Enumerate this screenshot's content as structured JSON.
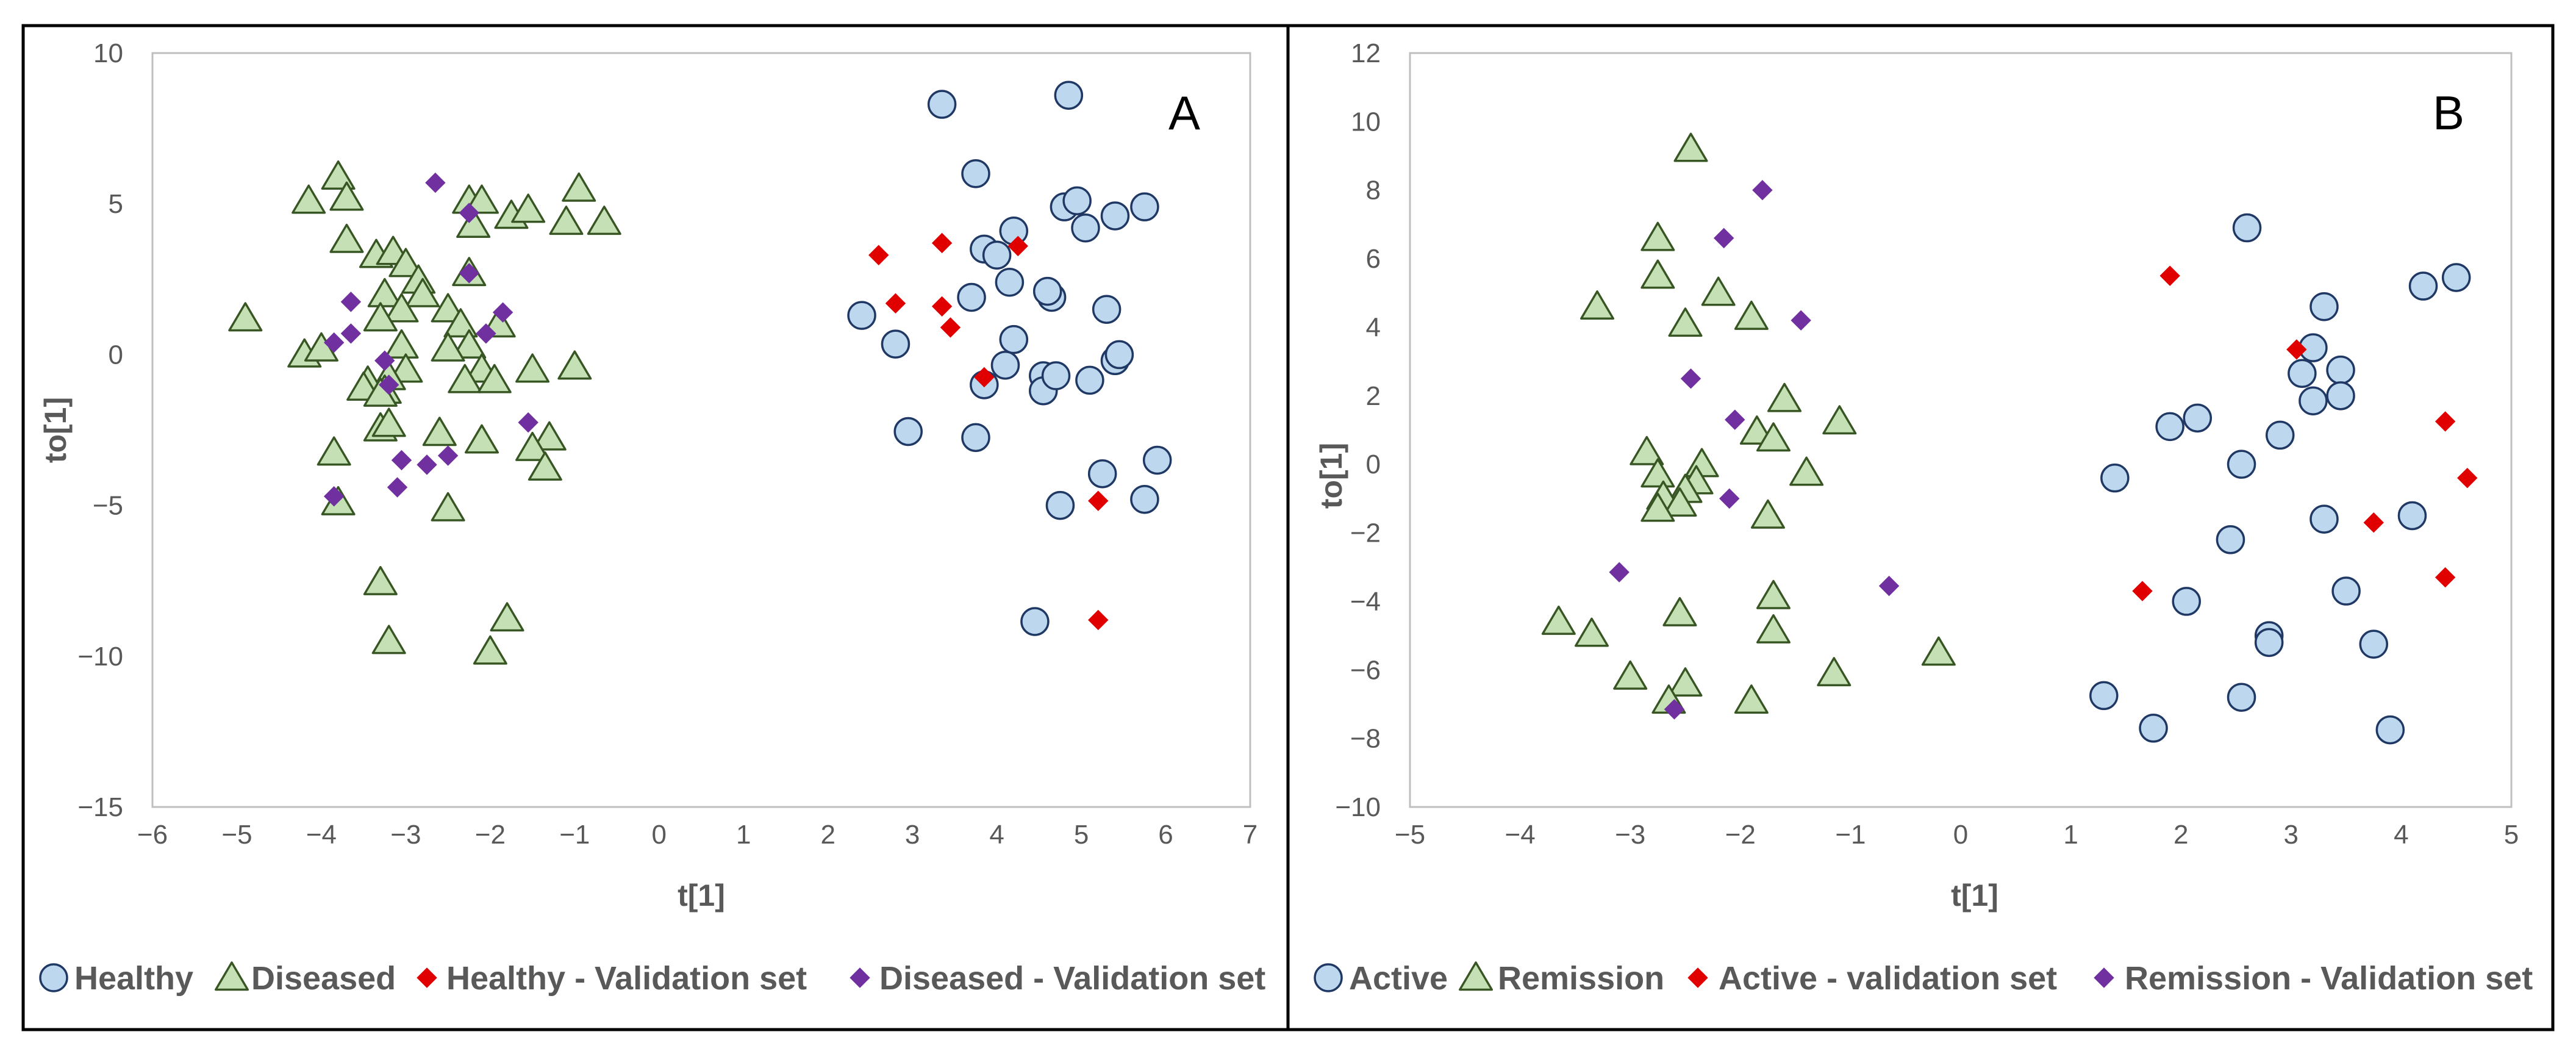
{
  "chart_data": [
    {
      "type": "scatter",
      "panel_label": "A",
      "xlabel": "t[1]",
      "ylabel": "to[1]",
      "xlim": [
        -6,
        7
      ],
      "ylim": [
        -15,
        10
      ],
      "xticks": [
        -6,
        -5,
        -4,
        -3,
        -2,
        -1,
        0,
        1,
        2,
        3,
        4,
        5,
        6,
        7
      ],
      "yticks": [
        -15,
        -10,
        -5,
        0,
        5,
        10
      ],
      "tick_labels_x": [
        "−6",
        "−5",
        "−4",
        "−3",
        "−2",
        "−1",
        "0",
        "1",
        "2",
        "3",
        "4",
        "5",
        "6",
        "7"
      ],
      "tick_labels_y": [
        "−15",
        "−10",
        "−5",
        "0",
        "5",
        "10"
      ],
      "grid": false,
      "legend_position": "bottom",
      "series": [
        {
          "name": "Healthy",
          "marker": "circle",
          "fill": "#BDD7EE",
          "stroke": "#1F3864",
          "points": [
            [
              3.35,
              8.3
            ],
            [
              4.85,
              8.6
            ],
            [
              3.75,
              6.0
            ],
            [
              4.8,
              4.9
            ],
            [
              4.95,
              5.1
            ],
            [
              5.05,
              4.2
            ],
            [
              5.4,
              4.6
            ],
            [
              5.75,
              4.9
            ],
            [
              4.2,
              4.1
            ],
            [
              3.85,
              3.5
            ],
            [
              4.0,
              3.3
            ],
            [
              4.15,
              2.4
            ],
            [
              3.7,
              1.9
            ],
            [
              4.65,
              1.9
            ],
            [
              4.6,
              2.1
            ],
            [
              5.3,
              1.5
            ],
            [
              2.4,
              1.3
            ],
            [
              2.8,
              0.35
            ],
            [
              4.2,
              0.5
            ],
            [
              4.1,
              -0.35
            ],
            [
              3.85,
              -1.0
            ],
            [
              4.55,
              -0.7
            ],
            [
              4.55,
              -1.2
            ],
            [
              4.7,
              -0.7
            ],
            [
              5.1,
              -0.85
            ],
            [
              5.4,
              -0.2
            ],
            [
              5.45,
              0.0
            ],
            [
              2.95,
              -2.55
            ],
            [
              3.75,
              -2.75
            ],
            [
              5.25,
              -3.95
            ],
            [
              5.9,
              -3.5
            ],
            [
              4.75,
              -5.0
            ],
            [
              5.75,
              -4.8
            ],
            [
              4.45,
              -8.85
            ]
          ]
        },
        {
          "name": "Diseased",
          "marker": "triangle",
          "fill": "#C5E0B4",
          "stroke": "#375623",
          "points": [
            [
              -3.8,
              5.9
            ],
            [
              -3.7,
              5.2
            ],
            [
              -4.15,
              5.1
            ],
            [
              -0.95,
              5.5
            ],
            [
              -2.25,
              5.1
            ],
            [
              -2.1,
              5.1
            ],
            [
              -1.75,
              4.6
            ],
            [
              -1.55,
              4.8
            ],
            [
              -1.1,
              4.4
            ],
            [
              -0.65,
              4.4
            ],
            [
              -2.2,
              4.3
            ],
            [
              -3.7,
              3.8
            ],
            [
              -3.35,
              3.3
            ],
            [
              -3.15,
              3.4
            ],
            [
              -3.0,
              3.0
            ],
            [
              -2.85,
              2.45
            ],
            [
              -2.8,
              2.0
            ],
            [
              -2.25,
              2.7
            ],
            [
              -3.25,
              2.0
            ],
            [
              -3.05,
              1.5
            ],
            [
              -3.3,
              1.2
            ],
            [
              -4.9,
              1.2
            ],
            [
              -2.5,
              1.5
            ],
            [
              -1.9,
              1.0
            ],
            [
              -2.35,
              1.0
            ],
            [
              -3.05,
              0.3
            ],
            [
              -2.25,
              0.3
            ],
            [
              -2.5,
              0.2
            ],
            [
              -4.2,
              0.0
            ],
            [
              -4.0,
              0.2
            ],
            [
              -2.1,
              -0.5
            ],
            [
              -1.5,
              -0.5
            ],
            [
              -1.0,
              -0.4
            ],
            [
              -3.0,
              -0.5
            ],
            [
              -3.2,
              -0.75
            ],
            [
              -3.45,
              -0.9
            ],
            [
              -3.5,
              -1.1
            ],
            [
              -3.25,
              -1.2
            ],
            [
              -2.3,
              -0.85
            ],
            [
              -1.95,
              -0.85
            ],
            [
              -3.3,
              -1.3
            ],
            [
              -3.3,
              -2.45
            ],
            [
              -3.2,
              -2.3
            ],
            [
              -2.6,
              -2.6
            ],
            [
              -2.1,
              -2.85
            ],
            [
              -1.3,
              -2.75
            ],
            [
              -1.5,
              -3.1
            ],
            [
              -3.85,
              -3.25
            ],
            [
              -1.35,
              -3.75
            ],
            [
              -3.8,
              -4.9
            ],
            [
              -2.5,
              -5.1
            ],
            [
              -3.3,
              -7.55
            ],
            [
              -3.2,
              -9.5
            ],
            [
              -1.8,
              -8.75
            ],
            [
              -2.0,
              -9.85
            ]
          ]
        },
        {
          "name": "Healthy - Validation set",
          "marker": "diamond",
          "fill": "#E00000",
          "stroke": "#E00000",
          "points": [
            [
              2.6,
              3.3
            ],
            [
              3.35,
              3.7
            ],
            [
              4.25,
              3.6
            ],
            [
              2.8,
              1.7
            ],
            [
              3.35,
              1.6
            ],
            [
              3.45,
              0.9
            ],
            [
              3.85,
              -0.75
            ],
            [
              5.2,
              -4.85
            ],
            [
              5.2,
              -8.8
            ]
          ]
        },
        {
          "name": "Diseased - Validation set",
          "marker": "diamond",
          "fill": "#7030A0",
          "stroke": "#7030A0",
          "points": [
            [
              -2.65,
              5.7
            ],
            [
              -2.25,
              4.7
            ],
            [
              -2.25,
              2.7
            ],
            [
              -3.65,
              1.75
            ],
            [
              -1.85,
              1.4
            ],
            [
              -3.65,
              0.7
            ],
            [
              -3.85,
              0.4
            ],
            [
              -2.05,
              0.7
            ],
            [
              -3.25,
              -0.2
            ],
            [
              -3.2,
              -1.0
            ],
            [
              -1.55,
              -2.25
            ],
            [
              -3.05,
              -3.5
            ],
            [
              -2.75,
              -3.65
            ],
            [
              -2.5,
              -3.35
            ],
            [
              -3.1,
              -4.4
            ],
            [
              -3.85,
              -4.7
            ]
          ]
        }
      ]
    },
    {
      "type": "scatter",
      "panel_label": "B",
      "xlabel": "t[1]",
      "ylabel": "to[1]",
      "xlim": [
        -5,
        5
      ],
      "ylim": [
        -10,
        12
      ],
      "xticks": [
        -5,
        -4,
        -3,
        -2,
        -1,
        0,
        1,
        2,
        3,
        4,
        5
      ],
      "yticks": [
        -10,
        -8,
        -6,
        -4,
        -2,
        0,
        2,
        4,
        6,
        8,
        10,
        12
      ],
      "tick_labels_x": [
        "−5",
        "−4",
        "−3",
        "−2",
        "−1",
        "0",
        "1",
        "2",
        "3",
        "4",
        "5"
      ],
      "tick_labels_y": [
        "−10",
        "−8",
        "−6",
        "−4",
        "−2",
        "0",
        "2",
        "4",
        "6",
        "8",
        "10",
        "12"
      ],
      "grid": false,
      "legend_position": "bottom",
      "series": [
        {
          "name": "Active",
          "marker": "circle",
          "fill": "#BDD7EE",
          "stroke": "#1F3864",
          "points": [
            [
              2.6,
              6.9
            ],
            [
              4.2,
              5.2
            ],
            [
              4.5,
              5.45
            ],
            [
              3.3,
              4.6
            ],
            [
              3.2,
              3.4
            ],
            [
              3.1,
              2.65
            ],
            [
              3.45,
              2.75
            ],
            [
              3.2,
              1.85
            ],
            [
              3.45,
              2.0
            ],
            [
              2.15,
              1.35
            ],
            [
              1.9,
              1.1
            ],
            [
              2.9,
              0.85
            ],
            [
              1.4,
              -0.4
            ],
            [
              2.55,
              0.0
            ],
            [
              3.3,
              -1.6
            ],
            [
              4.1,
              -1.5
            ],
            [
              2.45,
              -2.2
            ],
            [
              3.5,
              -3.7
            ],
            [
              2.05,
              -4.0
            ],
            [
              2.8,
              -5.0
            ],
            [
              2.8,
              -5.2
            ],
            [
              3.75,
              -5.25
            ],
            [
              1.3,
              -6.75
            ],
            [
              2.55,
              -6.8
            ],
            [
              1.75,
              -7.7
            ],
            [
              3.9,
              -7.75
            ]
          ]
        },
        {
          "name": "Remission",
          "marker": "triangle",
          "fill": "#C5E0B4",
          "stroke": "#375623",
          "points": [
            [
              -2.45,
              9.2
            ],
            [
              -2.75,
              6.6
            ],
            [
              -2.75,
              5.5
            ],
            [
              -2.2,
              5.0
            ],
            [
              -3.3,
              4.6
            ],
            [
              -1.9,
              4.3
            ],
            [
              -2.5,
              4.1
            ],
            [
              -1.6,
              1.9
            ],
            [
              -1.1,
              1.25
            ],
            [
              -1.85,
              0.95
            ],
            [
              -1.7,
              0.75
            ],
            [
              -2.85,
              0.35
            ],
            [
              -2.35,
              0.0
            ],
            [
              -1.4,
              -0.25
            ],
            [
              -2.75,
              -0.3
            ],
            [
              -2.4,
              -0.5
            ],
            [
              -2.5,
              -0.75
            ],
            [
              -2.7,
              -0.95
            ],
            [
              -2.55,
              -1.15
            ],
            [
              -2.75,
              -1.3
            ],
            [
              -1.75,
              -1.5
            ],
            [
              -1.7,
              -3.85
            ],
            [
              -2.55,
              -4.35
            ],
            [
              -1.7,
              -4.85
            ],
            [
              -3.65,
              -4.6
            ],
            [
              -3.35,
              -4.95
            ],
            [
              -0.2,
              -5.5
            ],
            [
              -3.0,
              -6.2
            ],
            [
              -2.5,
              -6.4
            ],
            [
              -1.15,
              -6.1
            ],
            [
              -2.65,
              -6.9
            ],
            [
              -1.9,
              -6.9
            ]
          ]
        },
        {
          "name": "Active - validation set",
          "marker": "diamond",
          "fill": "#E00000",
          "stroke": "#E00000",
          "points": [
            [
              1.9,
              5.5
            ],
            [
              3.05,
              3.35
            ],
            [
              4.4,
              1.25
            ],
            [
              4.6,
              -0.4
            ],
            [
              3.75,
              -1.7
            ],
            [
              1.65,
              -3.7
            ],
            [
              4.4,
              -3.3
            ]
          ]
        },
        {
          "name": "Remission - Validation set",
          "marker": "diamond",
          "fill": "#7030A0",
          "stroke": "#7030A0",
          "points": [
            [
              -1.8,
              8.0
            ],
            [
              -2.15,
              6.6
            ],
            [
              -1.45,
              4.2
            ],
            [
              -2.45,
              2.5
            ],
            [
              -2.05,
              1.3
            ],
            [
              -2.1,
              -1.0
            ],
            [
              -3.1,
              -3.15
            ],
            [
              -0.65,
              -3.55
            ],
            [
              -2.6,
              -7.15
            ]
          ]
        }
      ]
    }
  ]
}
